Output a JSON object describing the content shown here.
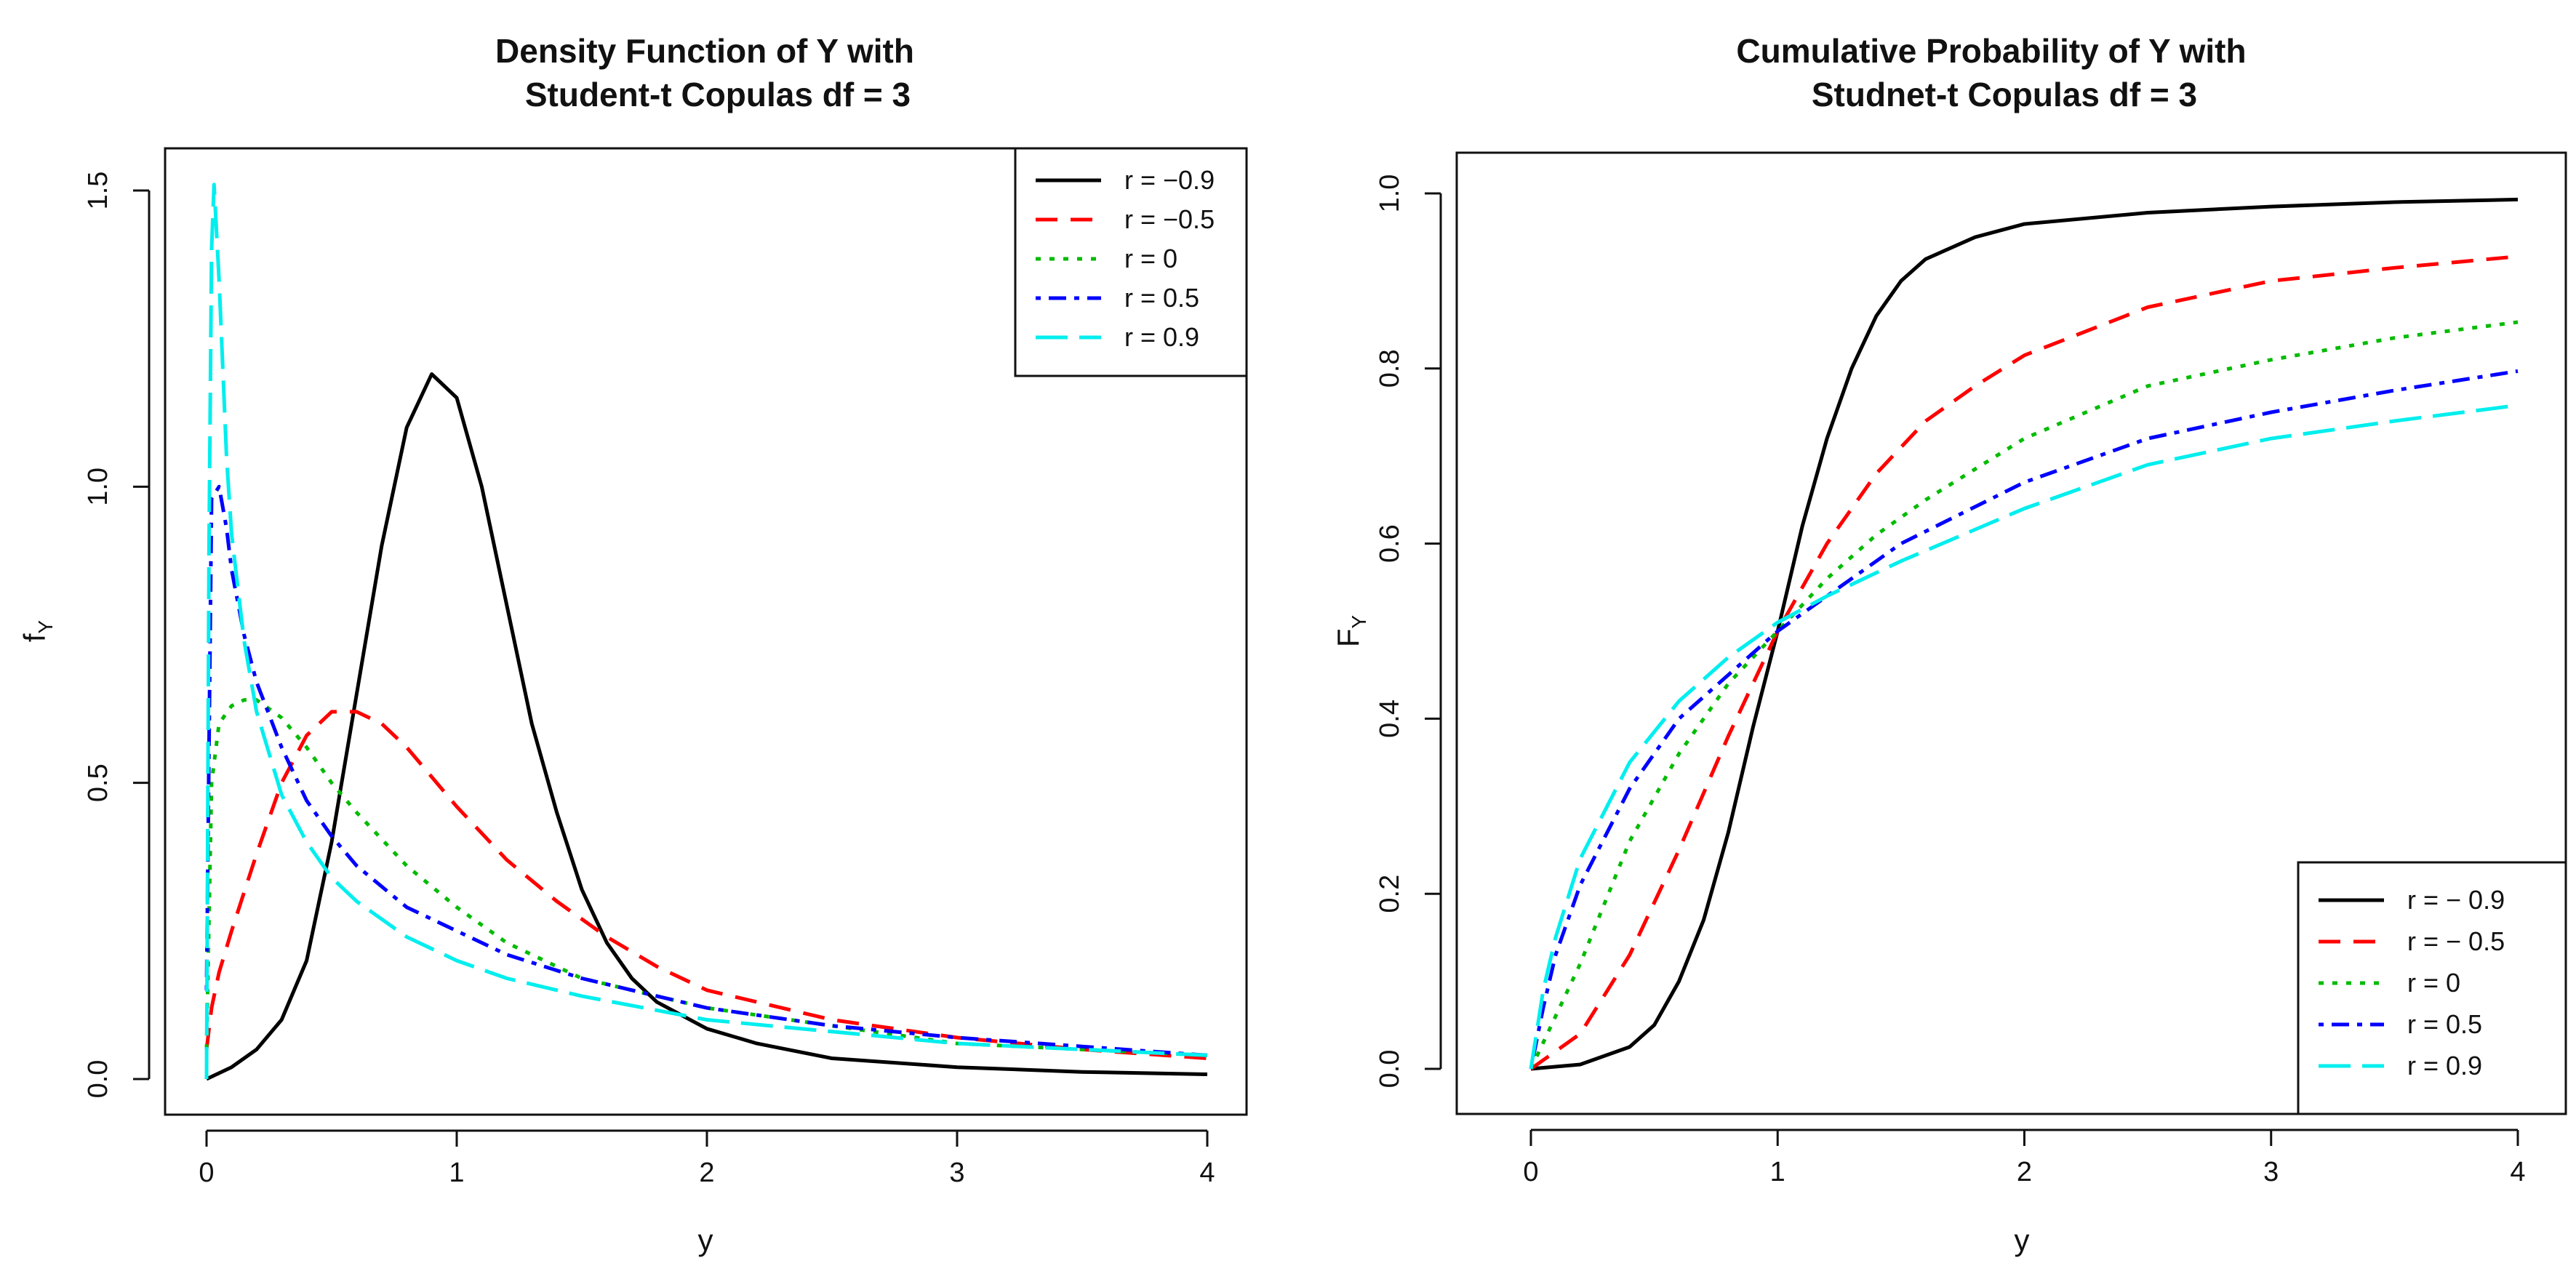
{
  "chart_data": [
    {
      "type": "line",
      "title": "Density Function of Y with",
      "subtitle": "Student-t Copulas df = 3",
      "xlabel": "y",
      "ylabel": "f",
      "ylabel_sub": "Y",
      "xlim": [
        0,
        4
      ],
      "ylim": [
        0,
        1.5
      ],
      "xticks": [
        "0",
        "1",
        "2",
        "3",
        "4"
      ],
      "yticks": [
        "0.0",
        "0.5",
        "1.0",
        "1.5"
      ],
      "grid": false,
      "legend_position": "top-right",
      "series": [
        {
          "name": "r = −0.9",
          "color": "#000000",
          "dash": "solid",
          "x": [
            0,
            0.1,
            0.2,
            0.3,
            0.4,
            0.5,
            0.6,
            0.7,
            0.8,
            0.9,
            1.0,
            1.1,
            1.2,
            1.3,
            1.4,
            1.5,
            1.6,
            1.7,
            1.8,
            2.0,
            2.2,
            2.5,
            3.0,
            3.5,
            4.0
          ],
          "y": [
            0.0,
            0.02,
            0.05,
            0.1,
            0.2,
            0.4,
            0.65,
            0.9,
            1.1,
            1.19,
            1.15,
            1.0,
            0.8,
            0.6,
            0.45,
            0.32,
            0.23,
            0.17,
            0.13,
            0.085,
            0.06,
            0.035,
            0.02,
            0.012,
            0.008
          ]
        },
        {
          "name": "r = −0.5",
          "color": "#ff0000",
          "dash": "dashed",
          "x": [
            0,
            0.02,
            0.05,
            0.1,
            0.2,
            0.3,
            0.4,
            0.5,
            0.6,
            0.7,
            0.8,
            0.9,
            1.0,
            1.2,
            1.4,
            1.6,
            1.8,
            2.0,
            2.5,
            3.0,
            3.5,
            4.0
          ],
          "y": [
            0.05,
            0.12,
            0.18,
            0.25,
            0.38,
            0.5,
            0.58,
            0.62,
            0.62,
            0.6,
            0.56,
            0.51,
            0.46,
            0.37,
            0.3,
            0.24,
            0.19,
            0.15,
            0.1,
            0.07,
            0.05,
            0.035
          ]
        },
        {
          "name": "r = 0",
          "color": "#00bb00",
          "dash": "dotted",
          "x": [
            0,
            0.02,
            0.05,
            0.1,
            0.15,
            0.2,
            0.3,
            0.4,
            0.5,
            0.6,
            0.8,
            1.0,
            1.2,
            1.5,
            2.0,
            2.5,
            3.0,
            3.5,
            4.0
          ],
          "y": [
            0.05,
            0.5,
            0.6,
            0.63,
            0.64,
            0.64,
            0.61,
            0.56,
            0.5,
            0.45,
            0.36,
            0.29,
            0.23,
            0.17,
            0.12,
            0.09,
            0.06,
            0.05,
            0.04
          ]
        },
        {
          "name": "r = 0.5",
          "color": "#0000ff",
          "dash": "dotdash",
          "x": [
            0,
            0.02,
            0.05,
            0.08,
            0.1,
            0.15,
            0.2,
            0.3,
            0.4,
            0.5,
            0.6,
            0.8,
            1.0,
            1.2,
            1.5,
            2.0,
            2.5,
            3.0,
            3.5,
            4.0
          ],
          "y": [
            0.15,
            0.98,
            1.0,
            0.93,
            0.86,
            0.75,
            0.67,
            0.56,
            0.47,
            0.41,
            0.36,
            0.29,
            0.25,
            0.21,
            0.17,
            0.12,
            0.09,
            0.07,
            0.055,
            0.04
          ]
        },
        {
          "name": "r = 0.9",
          "color": "#00eeee",
          "dash": "longdash",
          "x": [
            0,
            0.01,
            0.02,
            0.03,
            0.05,
            0.08,
            0.1,
            0.15,
            0.2,
            0.3,
            0.4,
            0.5,
            0.6,
            0.8,
            1.0,
            1.2,
            1.5,
            2.0,
            2.5,
            3.0,
            3.5,
            4.0
          ],
          "y": [
            0.0,
            0.9,
            1.4,
            1.51,
            1.35,
            1.05,
            0.92,
            0.74,
            0.62,
            0.48,
            0.4,
            0.34,
            0.3,
            0.24,
            0.2,
            0.17,
            0.14,
            0.1,
            0.08,
            0.06,
            0.05,
            0.04
          ]
        }
      ]
    },
    {
      "type": "line",
      "title": "Cumulative Probability of Y with",
      "subtitle": "Studnet-t Copulas df = 3",
      "xlabel": "y",
      "ylabel": "F",
      "ylabel_sub": "Y",
      "xlim": [
        0,
        4
      ],
      "ylim": [
        0,
        1.0
      ],
      "xticks": [
        "0",
        "1",
        "2",
        "3",
        "4"
      ],
      "yticks": [
        "0.0",
        "0.2",
        "0.4",
        "0.6",
        "0.8",
        "1.0"
      ],
      "grid": false,
      "legend_position": "bottom-right",
      "series": [
        {
          "name": "r = − 0.9",
          "color": "#000000",
          "dash": "solid",
          "x": [
            0,
            0.2,
            0.4,
            0.5,
            0.6,
            0.7,
            0.8,
            0.9,
            1.0,
            1.1,
            1.2,
            1.3,
            1.4,
            1.5,
            1.6,
            1.8,
            2.0,
            2.5,
            3.0,
            3.5,
            4.0
          ],
          "y": [
            0.0,
            0.005,
            0.025,
            0.05,
            0.1,
            0.17,
            0.27,
            0.39,
            0.5,
            0.62,
            0.72,
            0.8,
            0.86,
            0.9,
            0.925,
            0.95,
            0.965,
            0.978,
            0.985,
            0.99,
            0.993
          ]
        },
        {
          "name": "r = − 0.5",
          "color": "#ff0000",
          "dash": "dashed",
          "x": [
            0,
            0.2,
            0.4,
            0.6,
            0.8,
            1.0,
            1.2,
            1.4,
            1.6,
            1.8,
            2.0,
            2.5,
            3.0,
            3.5,
            4.0
          ],
          "y": [
            0.0,
            0.04,
            0.13,
            0.25,
            0.38,
            0.5,
            0.6,
            0.68,
            0.74,
            0.78,
            0.815,
            0.87,
            0.9,
            0.915,
            0.928
          ]
        },
        {
          "name": "r = 0",
          "color": "#00bb00",
          "dash": "dotted",
          "x": [
            0,
            0.2,
            0.4,
            0.6,
            0.8,
            1.0,
            1.2,
            1.4,
            1.6,
            2.0,
            2.5,
            3.0,
            3.5,
            4.0
          ],
          "y": [
            0.0,
            0.12,
            0.26,
            0.36,
            0.44,
            0.5,
            0.56,
            0.61,
            0.65,
            0.72,
            0.78,
            0.81,
            0.835,
            0.853
          ]
        },
        {
          "name": "r = 0.5",
          "color": "#0000ff",
          "dash": "dotdash",
          "x": [
            0,
            0.05,
            0.1,
            0.2,
            0.4,
            0.6,
            0.8,
            1.0,
            1.2,
            1.5,
            2.0,
            2.5,
            3.0,
            3.5,
            4.0
          ],
          "y": [
            0.0,
            0.07,
            0.13,
            0.21,
            0.32,
            0.4,
            0.45,
            0.5,
            0.54,
            0.6,
            0.67,
            0.72,
            0.75,
            0.775,
            0.797
          ]
        },
        {
          "name": "r = 0.9",
          "color": "#00eeee",
          "dash": "longdash",
          "x": [
            0,
            0.05,
            0.1,
            0.2,
            0.4,
            0.6,
            0.8,
            1.0,
            1.2,
            1.5,
            2.0,
            2.5,
            3.0,
            3.5,
            4.0
          ],
          "y": [
            0.0,
            0.09,
            0.15,
            0.24,
            0.35,
            0.42,
            0.47,
            0.51,
            0.54,
            0.58,
            0.64,
            0.69,
            0.72,
            0.74,
            0.758
          ]
        }
      ]
    }
  ]
}
